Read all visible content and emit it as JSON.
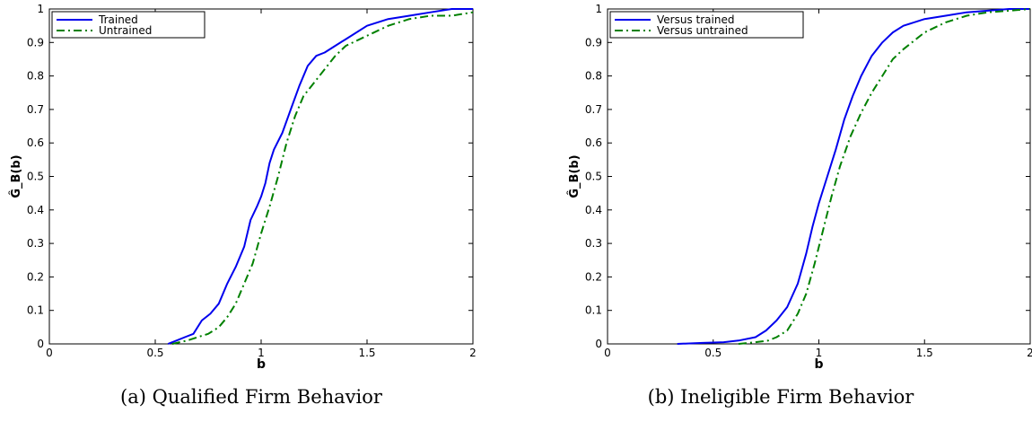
{
  "colors": {
    "trained": "#0000ee",
    "untrained": "#008000",
    "axis": "#000000"
  },
  "captions": {
    "a": "(a) Qualified Firm Behavior",
    "b": "(b) Ineligible Firm Behavior"
  },
  "chart_data": [
    {
      "type": "line",
      "title": "",
      "xlabel": "b",
      "ylabel": "Ĝ_B(b)",
      "xlim": [
        0,
        2
      ],
      "ylim": [
        0,
        1
      ],
      "xticks": [
        "0",
        "0.5",
        "1",
        "1.5",
        "2"
      ],
      "yticks": [
        "0",
        "0.1",
        "0.2",
        "0.3",
        "0.4",
        "0.5",
        "0.6",
        "0.7",
        "0.8",
        "0.9",
        "1"
      ],
      "legend": "top-left",
      "grid": false,
      "series": [
        {
          "name": "Trained",
          "style": "solid",
          "color": "#0000ee",
          "points": [
            [
              0.56,
              0.0
            ],
            [
              0.6,
              0.01
            ],
            [
              0.64,
              0.02
            ],
            [
              0.68,
              0.03
            ],
            [
              0.72,
              0.07
            ],
            [
              0.76,
              0.09
            ],
            [
              0.8,
              0.12
            ],
            [
              0.84,
              0.18
            ],
            [
              0.88,
              0.23
            ],
            [
              0.92,
              0.29
            ],
            [
              0.95,
              0.37
            ],
            [
              0.98,
              0.41
            ],
            [
              1.0,
              0.44
            ],
            [
              1.02,
              0.48
            ],
            [
              1.04,
              0.54
            ],
            [
              1.06,
              0.58
            ],
            [
              1.1,
              0.63
            ],
            [
              1.14,
              0.7
            ],
            [
              1.18,
              0.77
            ],
            [
              1.22,
              0.83
            ],
            [
              1.26,
              0.86
            ],
            [
              1.3,
              0.87
            ],
            [
              1.35,
              0.89
            ],
            [
              1.4,
              0.91
            ],
            [
              1.5,
              0.95
            ],
            [
              1.6,
              0.97
            ],
            [
              1.7,
              0.98
            ],
            [
              1.8,
              0.99
            ],
            [
              1.9,
              1.0
            ],
            [
              2.0,
              1.0
            ]
          ]
        },
        {
          "name": "Untrained",
          "style": "dashdot",
          "color": "#008000",
          "points": [
            [
              0.58,
              0.0
            ],
            [
              0.65,
              0.01
            ],
            [
              0.7,
              0.02
            ],
            [
              0.75,
              0.03
            ],
            [
              0.8,
              0.05
            ],
            [
              0.84,
              0.08
            ],
            [
              0.88,
              0.12
            ],
            [
              0.92,
              0.18
            ],
            [
              0.96,
              0.24
            ],
            [
              1.0,
              0.33
            ],
            [
              1.04,
              0.41
            ],
            [
              1.08,
              0.5
            ],
            [
              1.12,
              0.6
            ],
            [
              1.16,
              0.68
            ],
            [
              1.2,
              0.74
            ],
            [
              1.25,
              0.78
            ],
            [
              1.3,
              0.82
            ],
            [
              1.35,
              0.86
            ],
            [
              1.4,
              0.89
            ],
            [
              1.5,
              0.92
            ],
            [
              1.6,
              0.95
            ],
            [
              1.7,
              0.97
            ],
            [
              1.8,
              0.98
            ],
            [
              1.9,
              0.98
            ],
            [
              2.0,
              0.99
            ]
          ]
        }
      ]
    },
    {
      "type": "line",
      "title": "",
      "xlabel": "b",
      "ylabel": "Ĝ_B(b)",
      "xlim": [
        0,
        2
      ],
      "ylim": [
        0,
        1
      ],
      "xticks": [
        "0",
        "0.5",
        "1",
        "1.5",
        "2"
      ],
      "yticks": [
        "0",
        "0.1",
        "0.2",
        "0.3",
        "0.4",
        "0.5",
        "0.6",
        "0.7",
        "0.8",
        "0.9",
        "1"
      ],
      "legend": "top-left",
      "grid": false,
      "series": [
        {
          "name": "Versus trained",
          "style": "solid",
          "color": "#0000ee",
          "points": [
            [
              0.33,
              0.0
            ],
            [
              0.45,
              0.003
            ],
            [
              0.55,
              0.005
            ],
            [
              0.62,
              0.01
            ],
            [
              0.7,
              0.02
            ],
            [
              0.75,
              0.04
            ],
            [
              0.8,
              0.07
            ],
            [
              0.85,
              0.11
            ],
            [
              0.9,
              0.18
            ],
            [
              0.94,
              0.27
            ],
            [
              0.97,
              0.35
            ],
            [
              1.0,
              0.42
            ],
            [
              1.04,
              0.5
            ],
            [
              1.08,
              0.58
            ],
            [
              1.12,
              0.67
            ],
            [
              1.16,
              0.74
            ],
            [
              1.2,
              0.8
            ],
            [
              1.25,
              0.86
            ],
            [
              1.3,
              0.9
            ],
            [
              1.35,
              0.93
            ],
            [
              1.4,
              0.95
            ],
            [
              1.5,
              0.97
            ],
            [
              1.6,
              0.98
            ],
            [
              1.7,
              0.99
            ],
            [
              1.8,
              0.995
            ],
            [
              1.9,
              1.0
            ],
            [
              2.0,
              1.0
            ]
          ]
        },
        {
          "name": "Versus untrained",
          "style": "dashdot",
          "color": "#008000",
          "points": [
            [
              0.62,
              0.0
            ],
            [
              0.7,
              0.005
            ],
            [
              0.76,
              0.01
            ],
            [
              0.8,
              0.02
            ],
            [
              0.85,
              0.04
            ],
            [
              0.9,
              0.09
            ],
            [
              0.94,
              0.15
            ],
            [
              0.98,
              0.24
            ],
            [
              1.02,
              0.34
            ],
            [
              1.06,
              0.44
            ],
            [
              1.1,
              0.53
            ],
            [
              1.15,
              0.62
            ],
            [
              1.2,
              0.69
            ],
            [
              1.25,
              0.75
            ],
            [
              1.3,
              0.8
            ],
            [
              1.35,
              0.85
            ],
            [
              1.4,
              0.88
            ],
            [
              1.5,
              0.93
            ],
            [
              1.6,
              0.96
            ],
            [
              1.7,
              0.98
            ],
            [
              1.8,
              0.99
            ],
            [
              1.9,
              0.995
            ],
            [
              2.0,
              1.0
            ]
          ]
        }
      ]
    }
  ]
}
